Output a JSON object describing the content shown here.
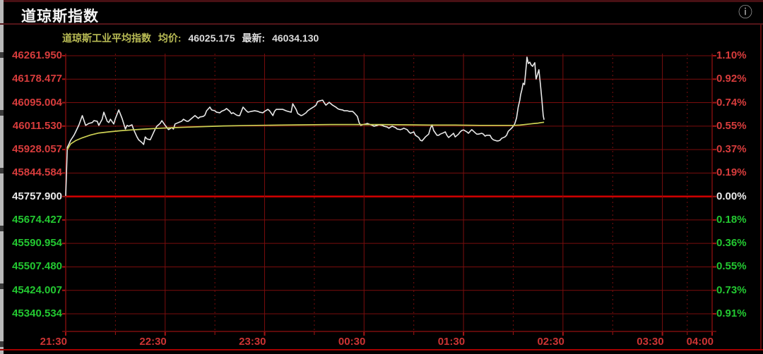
{
  "header": {
    "title": "道琼斯指数",
    "info_icon": "ⓘ"
  },
  "legend": {
    "index_name": "道琼斯工业平均指数",
    "avg_label": "均价:",
    "avg_value": "46025.175",
    "last_label": "最新:",
    "last_value": "46034.130"
  },
  "colors": {
    "up": "#d73c3c",
    "down": "#23c831",
    "flat": "#ebebeb",
    "grid": "#7a0d0d",
    "grid_bright": "#d40000",
    "tick": "#a51414",
    "axis_time": "#cd3434",
    "price_line": "#e9e9e9",
    "avg_line": "#ccd053",
    "legend_text": "#b9bc55",
    "background": "#000000"
  },
  "chart_data": {
    "type": "line",
    "title": "道琼斯指数",
    "subtitle": "道琼斯工业平均指数 均价: 46025.175 最新: 46034.130",
    "prev_close": 45757.9,
    "avg_price": 46025.175,
    "last_price": 46034.13,
    "session_minutes": 390,
    "grid": true,
    "legend_position": "top-left",
    "y_rows": [
      {
        "label": "46261.950",
        "pct": "1.10%",
        "tone": "up"
      },
      {
        "label": "46178.477",
        "pct": "0.92%",
        "tone": "up"
      },
      {
        "label": "46095.004",
        "pct": "0.74%",
        "tone": "up"
      },
      {
        "label": "46011.530",
        "pct": "0.55%",
        "tone": "up"
      },
      {
        "label": "45928.057",
        "pct": "0.37%",
        "tone": "up"
      },
      {
        "label": "45844.584",
        "pct": "0.19%",
        "tone": "up"
      },
      {
        "label": "45757.900",
        "pct": "0.00%",
        "tone": "flat"
      },
      {
        "label": "45674.427",
        "pct": "0.18%",
        "tone": "down"
      },
      {
        "label": "45590.954",
        "pct": "0.36%",
        "tone": "down"
      },
      {
        "label": "45507.480",
        "pct": "0.55%",
        "tone": "down"
      },
      {
        "label": "45424.007",
        "pct": "0.73%",
        "tone": "down"
      },
      {
        "label": "45340.534",
        "pct": "0.91%",
        "tone": "down"
      }
    ],
    "x_axis_ticks": [
      {
        "label": "21:30",
        "t": 0
      },
      {
        "label": "22:30",
        "t": 60
      },
      {
        "label": "23:30",
        "t": 120
      },
      {
        "label": "00:30",
        "t": 180
      },
      {
        "label": "01:30",
        "t": 240
      },
      {
        "label": "02:30",
        "t": 300
      },
      {
        "label": "03:30",
        "t": 360
      },
      {
        "label": "04:00",
        "t": 390
      }
    ],
    "minor_grid_t": [
      30,
      90,
      150,
      210,
      270,
      330,
      375
    ],
    "series": [
      {
        "name": "price",
        "color": "#e9e9e9",
        "width": 1.6,
        "points": [
          [
            0,
            45760
          ],
          [
            1,
            45936
          ],
          [
            2,
            45948
          ],
          [
            3,
            45961
          ],
          [
            5,
            45979
          ],
          [
            6,
            45991
          ],
          [
            8,
            46016
          ],
          [
            10,
            46049
          ],
          [
            12,
            46014
          ],
          [
            14,
            46021
          ],
          [
            16,
            46024
          ],
          [
            17,
            46031
          ],
          [
            19,
            46029
          ],
          [
            20,
            46014
          ],
          [
            22,
            46036
          ],
          [
            23,
            46061
          ],
          [
            25,
            46029
          ],
          [
            26,
            46024
          ],
          [
            27,
            46036
          ],
          [
            29,
            46019
          ],
          [
            30,
            46039
          ],
          [
            32,
            46069
          ],
          [
            34,
            46039
          ],
          [
            36,
            46001
          ],
          [
            37,
            46014
          ],
          [
            38,
            46011
          ],
          [
            40,
            46016
          ],
          [
            41,
            45999
          ],
          [
            43,
            45973
          ],
          [
            44,
            45963
          ],
          [
            46,
            45953
          ],
          [
            47,
            45946
          ],
          [
            48,
            45973
          ],
          [
            49,
            45966
          ],
          [
            51,
            45963
          ],
          [
            53,
            45988
          ],
          [
            54,
            46001
          ],
          [
            55,
            46011
          ],
          [
            57,
            46021
          ],
          [
            58,
            46031
          ],
          [
            60,
            46014
          ],
          [
            62,
            45999
          ],
          [
            64,
            46006
          ],
          [
            65,
            46001
          ],
          [
            66,
            46019
          ],
          [
            68,
            46024
          ],
          [
            70,
            46029
          ],
          [
            71,
            46036
          ],
          [
            73,
            46029
          ],
          [
            74,
            46029
          ],
          [
            76,
            46039
          ],
          [
            77,
            46044
          ],
          [
            78,
            46049
          ],
          [
            80,
            46039
          ],
          [
            81,
            46044
          ],
          [
            83,
            46046
          ],
          [
            84,
            46051
          ],
          [
            85,
            46066
          ],
          [
            87,
            46079
          ],
          [
            88,
            46069
          ],
          [
            90,
            46066
          ],
          [
            91,
            46061
          ],
          [
            93,
            46059
          ],
          [
            94,
            46064
          ],
          [
            96,
            46069
          ],
          [
            97,
            46074
          ],
          [
            99,
            46064
          ],
          [
            100,
            46056
          ],
          [
            101,
            46059
          ],
          [
            103,
            46051
          ],
          [
            104,
            46049
          ],
          [
            105,
            46049
          ],
          [
            107,
            46079
          ],
          [
            109,
            46066
          ],
          [
            110,
            46061
          ],
          [
            112,
            46064
          ],
          [
            114,
            46066
          ],
          [
            116,
            46064
          ],
          [
            117,
            46061
          ],
          [
            119,
            46059
          ],
          [
            120,
            46064
          ],
          [
            122,
            46071
          ],
          [
            123,
            46066
          ],
          [
            125,
            46049
          ],
          [
            126,
            46064
          ],
          [
            127,
            46071
          ],
          [
            129,
            46071
          ],
          [
            131,
            46071
          ],
          [
            133,
            46066
          ],
          [
            134,
            46064
          ],
          [
            136,
            46061
          ],
          [
            137,
            46091
          ],
          [
            139,
            46071
          ],
          [
            140,
            46056
          ],
          [
            142,
            46049
          ],
          [
            143,
            46051
          ],
          [
            145,
            46059
          ],
          [
            146,
            46066
          ],
          [
            148,
            46074
          ],
          [
            150,
            46081
          ],
          [
            151,
            46086
          ],
          [
            152,
            46099
          ],
          [
            153,
            46101
          ],
          [
            155,
            46104
          ],
          [
            156,
            46094
          ],
          [
            157,
            46086
          ],
          [
            159,
            46096
          ],
          [
            160,
            46091
          ],
          [
            161,
            46086
          ],
          [
            163,
            46079
          ],
          [
            164,
            46074
          ],
          [
            165,
            46071
          ],
          [
            167,
            46069
          ],
          [
            168,
            46066
          ],
          [
            170,
            46066
          ],
          [
            171,
            46064
          ],
          [
            173,
            46064
          ],
          [
            174,
            46059
          ],
          [
            176,
            46046
          ],
          [
            177,
            46024
          ],
          [
            178,
            46014
          ],
          [
            179,
            46016
          ],
          [
            181,
            46019
          ],
          [
            182,
            46021
          ],
          [
            184,
            46016
          ],
          [
            185,
            46014
          ],
          [
            186,
            46011
          ],
          [
            188,
            46014
          ],
          [
            189,
            46016
          ],
          [
            191,
            46014
          ],
          [
            192,
            46011
          ],
          [
            194,
            46008
          ],
          [
            195,
            46004
          ],
          [
            196,
            46008
          ],
          [
            197,
            46011
          ],
          [
            199,
            46006
          ],
          [
            200,
            46001
          ],
          [
            202,
            45999
          ],
          [
            203,
            46001
          ],
          [
            204,
            46004
          ],
          [
            206,
            45999
          ],
          [
            207,
            45991
          ],
          [
            208,
            45986
          ],
          [
            210,
            45991
          ],
          [
            211,
            45979
          ],
          [
            213,
            45971
          ],
          [
            214,
            45961
          ],
          [
            215,
            45959
          ],
          [
            216,
            45966
          ],
          [
            217,
            45973
          ],
          [
            219,
            45983
          ],
          [
            220,
            46004
          ],
          [
            221,
            46016
          ],
          [
            222,
            45996
          ],
          [
            224,
            45979
          ],
          [
            225,
            45979
          ],
          [
            226,
            45983
          ],
          [
            228,
            45988
          ],
          [
            229,
            45991
          ],
          [
            230,
            45979
          ],
          [
            231,
            45971
          ],
          [
            233,
            45981
          ],
          [
            234,
            45986
          ],
          [
            235,
            45973
          ],
          [
            237,
            45983
          ],
          [
            238,
            45991
          ],
          [
            239,
            45996
          ],
          [
            240,
            45998
          ],
          [
            242,
            45991
          ],
          [
            243,
            45986
          ],
          [
            244,
            45993
          ],
          [
            245,
            45999
          ],
          [
            247,
            45988
          ],
          [
            248,
            45983
          ],
          [
            249,
            45983
          ],
          [
            251,
            45986
          ],
          [
            252,
            45983
          ],
          [
            253,
            45976
          ],
          [
            254,
            45979
          ],
          [
            256,
            45979
          ],
          [
            257,
            45968
          ],
          [
            258,
            45963
          ],
          [
            260,
            45959
          ],
          [
            261,
            45959
          ],
          [
            262,
            45961
          ],
          [
            263,
            45968
          ],
          [
            265,
            45973
          ],
          [
            266,
            45979
          ],
          [
            267,
            45993
          ],
          [
            269,
            46004
          ],
          [
            270,
            46011
          ],
          [
            271,
            46021
          ],
          [
            272,
            46041
          ],
          [
            273,
            46079
          ],
          [
            274,
            46104
          ],
          [
            274.5,
            46124
          ],
          [
            275.2,
            46141
          ],
          [
            276,
            46164
          ],
          [
            276.8,
            46159
          ],
          [
            277.9,
            46229
          ],
          [
            278.3,
            46257
          ],
          [
            279.1,
            46234
          ],
          [
            280,
            46239
          ],
          [
            280.8,
            46229
          ],
          [
            281.7,
            46224
          ],
          [
            282.1,
            46229
          ],
          [
            283,
            46237
          ],
          [
            283.8,
            46179
          ],
          [
            284.7,
            46197
          ],
          [
            285.5,
            46212
          ],
          [
            286.4,
            46161
          ],
          [
            287.2,
            46111
          ],
          [
            288.1,
            46049
          ],
          [
            288.6,
            46034.13
          ]
        ]
      },
      {
        "name": "avg",
        "color": "#ccd053",
        "width": 1.7,
        "points": [
          [
            1,
            45928
          ],
          [
            3,
            45948
          ],
          [
            6,
            45960
          ],
          [
            10,
            45970
          ],
          [
            15,
            45980
          ],
          [
            20,
            45987
          ],
          [
            26,
            45991
          ],
          [
            33,
            45995
          ],
          [
            40,
            45998
          ],
          [
            48,
            46001
          ],
          [
            57,
            46004
          ],
          [
            65,
            46006
          ],
          [
            75,
            46008
          ],
          [
            85,
            46010
          ],
          [
            95,
            46012
          ],
          [
            105,
            46013
          ],
          [
            115,
            46014
          ],
          [
            130,
            46015
          ],
          [
            145,
            46016
          ],
          [
            160,
            46017
          ],
          [
            175,
            46017
          ],
          [
            190,
            46017
          ],
          [
            205,
            46016
          ],
          [
            220,
            46015
          ],
          [
            235,
            46015
          ],
          [
            250,
            46014
          ],
          [
            262,
            46014
          ],
          [
            270,
            46014
          ],
          [
            274,
            46015
          ],
          [
            277,
            46017
          ],
          [
            280,
            46019
          ],
          [
            283,
            46021
          ],
          [
            285,
            46022
          ],
          [
            287,
            46024
          ],
          [
            288.6,
            46025.175
          ]
        ]
      }
    ]
  }
}
